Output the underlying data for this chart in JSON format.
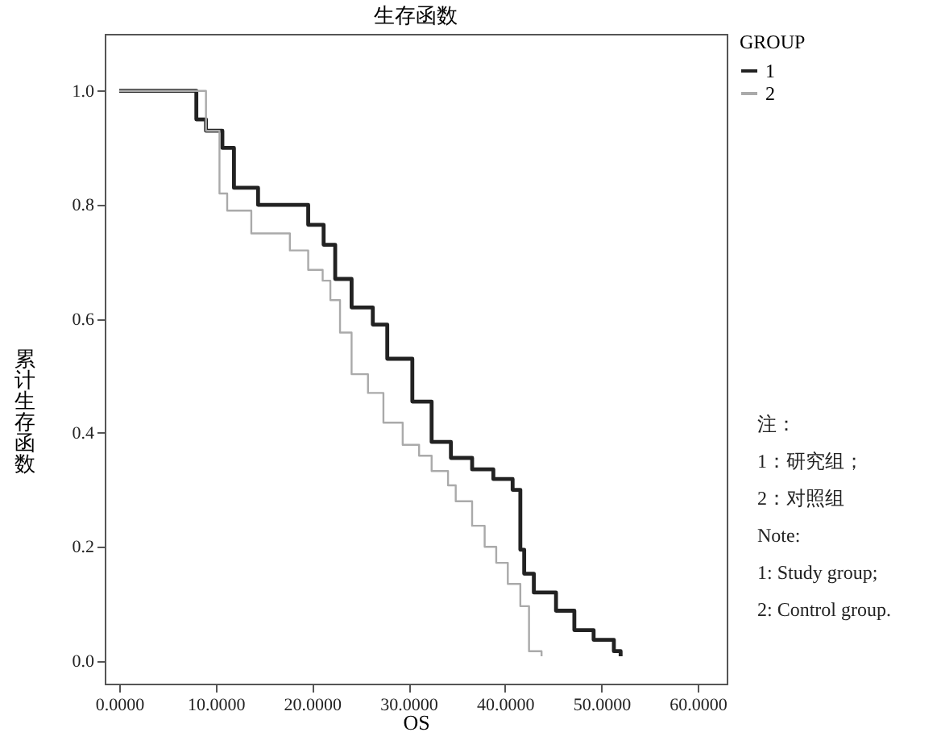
{
  "chart_data": {
    "type": "step",
    "title": "生存函数",
    "xlabel": "OS",
    "ylabel": "累计生存函数",
    "legend_title": "GROUP",
    "legend": "right",
    "grid": false,
    "marker": "none",
    "line_style": "solid",
    "xlim": [
      -1.5,
      63
    ],
    "ylim": [
      -0.04,
      1.1
    ],
    "xticks": [
      {
        "value": 0,
        "label": "0.0000"
      },
      {
        "value": 10,
        "label": "10.0000"
      },
      {
        "value": 20,
        "label": "20.0000"
      },
      {
        "value": 30,
        "label": "30.0000"
      },
      {
        "value": 40,
        "label": "40.0000"
      },
      {
        "value": 50,
        "label": "50.0000"
      },
      {
        "value": 60,
        "label": "60.0000"
      }
    ],
    "yticks": [
      {
        "value": 0,
        "label": "0.0"
      },
      {
        "value": 0.2,
        "label": "0.2"
      },
      {
        "value": 0.4,
        "label": "0.4"
      },
      {
        "value": 0.6,
        "label": "0.6"
      },
      {
        "value": 0.8,
        "label": "0.8"
      },
      {
        "value": 1,
        "label": "1.0"
      }
    ],
    "annotations": [
      "注：",
      "1：研究组；",
      "2：对照组",
      "Note:",
      "1: Study group;",
      "2: Control group."
    ],
    "series": [
      {
        "name": "1",
        "color": "#222222",
        "x": [
          0,
          8,
          9,
          10.7,
          11.9,
          14.4,
          17.7,
          19.6,
          21.2,
          22.4,
          24.1,
          26.3,
          27.8,
          29.6,
          30.4,
          32.4,
          34.4,
          36.6,
          38.8,
          40.8,
          41.6,
          42,
          43,
          45.3,
          47.2,
          49.2,
          51.3,
          52
        ],
        "values": [
          1,
          0.95,
          0.93,
          0.9,
          0.83,
          0.8,
          0.8,
          0.765,
          0.73,
          0.67,
          0.62,
          0.59,
          0.53,
          0.53,
          0.455,
          0.384,
          0.356,
          0.336,
          0.319,
          0.3,
          0.195,
          0.153,
          0.12,
          0.088,
          0.054,
          0.037,
          0.017,
          0.008
        ]
      },
      {
        "name": "2",
        "color": "#aaaaaa",
        "x": [
          0,
          9,
          10.4,
          11.2,
          13.7,
          17.7,
          19.6,
          21.1,
          21.9,
          22.9,
          24.1,
          25.8,
          27.4,
          29.4,
          31.1,
          32.4,
          34.1,
          34.9,
          36.6,
          37.9,
          39.1,
          40.3,
          41.6,
          42.5,
          43.8
        ],
        "values": [
          1,
          0.93,
          0.82,
          0.79,
          0.75,
          0.72,
          0.686,
          0.667,
          0.633,
          0.576,
          0.503,
          0.47,
          0.418,
          0.379,
          0.36,
          0.333,
          0.308,
          0.28,
          0.237,
          0.2,
          0.172,
          0.135,
          0.096,
          0.017,
          0.008
        ]
      }
    ]
  }
}
